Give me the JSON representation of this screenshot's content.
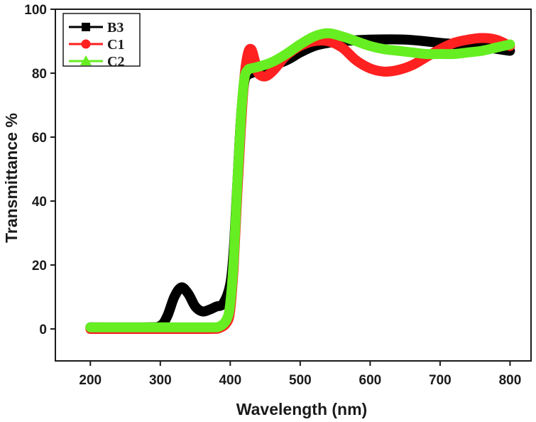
{
  "chart_data": {
    "type": "line",
    "xlabel": "Wavelength (nm)",
    "ylabel": "Transmittance %",
    "xlim": [
      150,
      830
    ],
    "ylim": [
      -10,
      100
    ],
    "xticks": [
      200,
      300,
      400,
      500,
      600,
      700,
      800
    ],
    "yticks": [
      0,
      20,
      40,
      60,
      80,
      100
    ],
    "legend_position": "top-left",
    "series": [
      {
        "name": "B3",
        "color": "#000000",
        "marker": "square",
        "x": [
          200,
          280,
          300,
          310,
          320,
          330,
          340,
          350,
          360,
          370,
          380,
          390,
          400,
          405,
          410,
          415,
          420,
          425,
          430,
          450,
          480,
          500,
          520,
          540,
          560,
          600,
          650,
          700,
          750,
          800
        ],
        "y": [
          0.5,
          0.5,
          1,
          4,
          10,
          13,
          11,
          7,
          5.5,
          6,
          7,
          8,
          14,
          25,
          45,
          65,
          77,
          79.5,
          80,
          81.5,
          84,
          86.5,
          88.5,
          89.5,
          90,
          90.5,
          90.5,
          89.5,
          88.5,
          87
        ]
      },
      {
        "name": "C1",
        "color": "#ff2020",
        "marker": "circle",
        "x": [
          200,
          300,
          370,
          385,
          395,
          400,
          405,
          410,
          415,
          420,
          425,
          430,
          435,
          440,
          450,
          460,
          470,
          480,
          500,
          520,
          540,
          560,
          580,
          600,
          620,
          640,
          660,
          680,
          700,
          720,
          740,
          760,
          780,
          800
        ],
        "y": [
          0,
          0,
          0,
          0.3,
          2,
          6,
          20,
          42,
          62,
          78,
          86,
          87.5,
          84,
          80,
          79,
          80.5,
          83,
          85.5,
          88.5,
          90,
          90,
          88,
          84,
          81.5,
          80.5,
          81,
          82.5,
          85,
          87.5,
          89.5,
          90.5,
          91,
          90.5,
          88.5
        ]
      },
      {
        "name": "C2",
        "color": "#66ee22",
        "marker": "triangle",
        "x": [
          200,
          300,
          370,
          385,
          395,
          400,
          405,
          410,
          415,
          420,
          425,
          430,
          440,
          460,
          480,
          500,
          520,
          540,
          560,
          580,
          600,
          620,
          640,
          660,
          680,
          700,
          720,
          740,
          760,
          780,
          800
        ],
        "y": [
          0.5,
          0.5,
          0.5,
          0.8,
          3,
          8,
          22,
          45,
          65,
          78,
          81,
          81.5,
          82,
          83.5,
          86,
          89,
          91.5,
          92.5,
          91.5,
          90,
          88.5,
          87.5,
          87,
          86.5,
          86,
          86,
          86,
          86.5,
          87,
          88,
          89
        ]
      }
    ]
  }
}
